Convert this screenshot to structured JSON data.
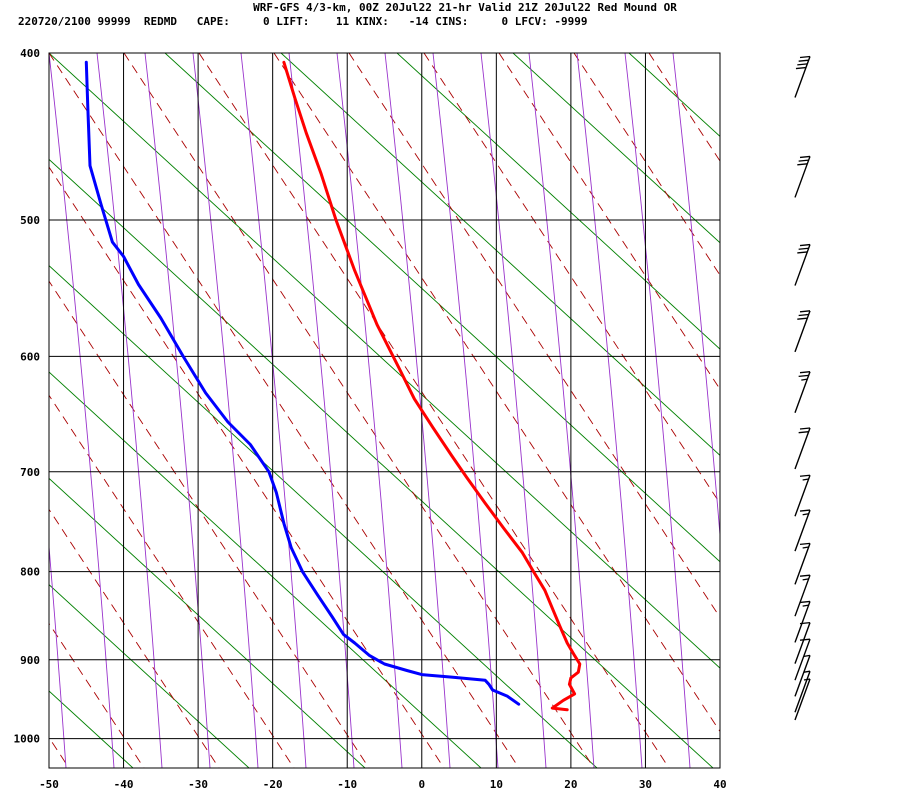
{
  "header": {
    "line1": "WRF-GFS 4/3-km, 00Z 20Jul22 21-hr Valid 21Z 20Jul22 Red Mound OR",
    "line2": "220720/2100 99999  REDMD   CAPE:     0 LIFT:    11 KINX:   -14 CINS:     0 LFCV: -9999"
  },
  "chart_data": {
    "type": "line",
    "title": "WRF-GFS 4/3-km, 00Z 20Jul22 21-hr Valid 21Z 20Jul22 Red Mound OR",
    "subtitle": "220720/2100 99999  REDMD   CAPE:     0 LIFT:    11 KINX:   -14 CINS:     0 LFCV: -9999",
    "xlim": [
      -50,
      40
    ],
    "ylim": [
      1040,
      400
    ],
    "y_log_scale": true,
    "x_ticks": [
      -50,
      -40,
      -30,
      -20,
      -10,
      0,
      10,
      20,
      30,
      40
    ],
    "y_ticks": [
      400,
      500,
      600,
      700,
      800,
      900,
      1000
    ],
    "grid": true,
    "colors": {
      "temperature": "#ff0000",
      "dewpoint": "#0000ff",
      "dry_adiabat": "#aa0000",
      "moist_adiabat": "#9933cc",
      "mixing_ratio": "#008000",
      "grid": "#000000",
      "barb": "#000000"
    },
    "series": [
      {
        "points": [
          [
            -18.5,
            405
          ],
          [
            -17,
            425
          ],
          [
            -15.5,
            445
          ],
          [
            -13.5,
            470
          ],
          [
            -11.5,
            500
          ],
          [
            -9,
            535
          ],
          [
            -6,
            575
          ],
          [
            -3,
            610
          ],
          [
            -1,
            635
          ],
          [
            1.5,
            660
          ],
          [
            4,
            685
          ],
          [
            6,
            705
          ],
          [
            8.5,
            730
          ],
          [
            11,
            755
          ],
          [
            13.5,
            780
          ],
          [
            15,
            800
          ],
          [
            16.5,
            820
          ],
          [
            17.5,
            840
          ],
          [
            18.5,
            860
          ],
          [
            19.5,
            880
          ],
          [
            20.5,
            895
          ],
          [
            21.2,
            905
          ],
          [
            21,
            915
          ],
          [
            20,
            922
          ],
          [
            19.8,
            930
          ],
          [
            20.5,
            942
          ],
          [
            19,
            950
          ],
          [
            17.5,
            960
          ],
          [
            19.5,
            962
          ]
        ]
      },
      {
        "points": [
          [
            -45,
            405
          ],
          [
            -44.8,
            430
          ],
          [
            -44.5,
            465
          ],
          [
            -43,
            490
          ],
          [
            -41.5,
            515
          ],
          [
            -40,
            525
          ],
          [
            -38,
            545
          ],
          [
            -35,
            570
          ],
          [
            -32,
            600
          ],
          [
            -29,
            630
          ],
          [
            -26,
            655
          ],
          [
            -23,
            675
          ],
          [
            -20.5,
            700
          ],
          [
            -19.5,
            720
          ],
          [
            -18.5,
            750
          ],
          [
            -17.5,
            775
          ],
          [
            -16,
            800
          ],
          [
            -14,
            825
          ],
          [
            -12,
            850
          ],
          [
            -10.5,
            870
          ],
          [
            -9,
            880
          ],
          [
            -7,
            895
          ],
          [
            -5,
            905
          ],
          [
            -2,
            913
          ],
          [
            0,
            918
          ],
          [
            4,
            921
          ],
          [
            8.5,
            925
          ],
          [
            9,
            930
          ],
          [
            9.5,
            937
          ],
          [
            11.5,
            945
          ],
          [
            13,
            955
          ]
        ]
      }
    ],
    "wind_barbs": [
      {
        "p": 420,
        "knots": 40
      },
      {
        "p": 480,
        "knots": 30
      },
      {
        "p": 540,
        "knots": 30
      },
      {
        "p": 590,
        "knots": 30
      },
      {
        "p": 640,
        "knots": 25
      },
      {
        "p": 690,
        "knots": 20
      },
      {
        "p": 735,
        "knots": 15
      },
      {
        "p": 770,
        "knots": 15
      },
      {
        "p": 805,
        "knots": 15
      },
      {
        "p": 840,
        "knots": 15
      },
      {
        "p": 870,
        "knots": 15
      },
      {
        "p": 895,
        "knots": 10
      },
      {
        "p": 915,
        "knots": 10
      },
      {
        "p": 935,
        "knots": 5
      },
      {
        "p": 955,
        "knots": 5
      },
      {
        "p": 965,
        "knots": 5
      }
    ]
  }
}
